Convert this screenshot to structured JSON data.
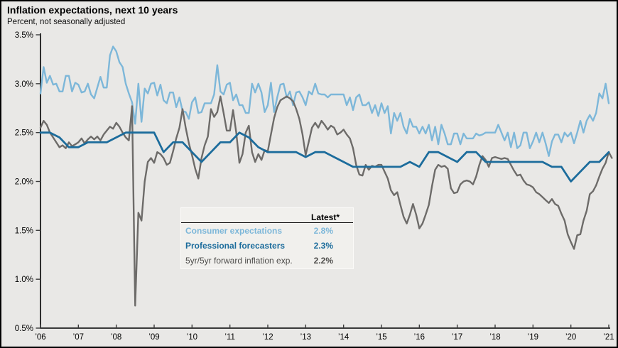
{
  "header": {
    "title": "Inflation expectations, next 10 years",
    "subtitle": "Percent, not seasonally adjusted"
  },
  "colors": {
    "background": "#e9e8e6",
    "axis": "#000000",
    "tick": "#3a3a3a",
    "consumer": "#7db7d9",
    "professional": "#1c6c9c",
    "forward": "#6d6b69",
    "legend_bg": "#f1f0ed",
    "legend_forward_text": "#4e4d4b"
  },
  "axes": {
    "y_tick_labels": [
      "3.5%",
      "3.0%",
      "2.5%",
      "2.0%",
      "1.5%",
      "1.0%",
      "0.5%"
    ],
    "y_tick_values": [
      3.5,
      3.0,
      2.5,
      2.0,
      1.5,
      1.0,
      0.5
    ],
    "x_tick_labels": [
      "’06",
      "’07",
      "’08",
      "’09",
      "’10",
      "’11",
      "’12",
      "’13",
      "’14",
      "’15",
      "’16",
      "’17",
      "’18",
      "’19",
      "’20",
      "’21"
    ],
    "x_tick_values": [
      2006,
      2007,
      2008,
      2009,
      2010,
      2011,
      2012,
      2013,
      2014,
      2015,
      2016,
      2017,
      2018,
      2019,
      2020,
      2021
    ],
    "y_min": 0.5,
    "y_max": 3.5
  },
  "legend": {
    "header": "Latest*",
    "rows": [
      {
        "label": "Consumer expectations",
        "value": "2.8%",
        "series": "consumer"
      },
      {
        "label": "Professional forecasters",
        "value": "2.3%",
        "series": "professional"
      },
      {
        "label": "5yr/5yr forward inflation exp.",
        "value": "2.2%",
        "series": "forward"
      }
    ]
  },
  "chart_data": {
    "type": "line",
    "title": "Inflation expectations, next 10 years",
    "ylabel": "Percent, not seasonally adjusted",
    "ylim": [
      0.5,
      3.5
    ],
    "xlim": [
      2006,
      2021.1
    ],
    "grid": false,
    "legend_position": "inset-center-left",
    "series": [
      {
        "name": "Consumer expectations",
        "color_key": "consumer",
        "latest": "2.8%",
        "start_year": 2006,
        "interval_months": 1,
        "width": 2.4,
        "values": [
          2.9,
          3.17,
          3.01,
          3.08,
          2.99,
          3.0,
          2.92,
          2.92,
          3.08,
          3.08,
          2.92,
          3.01,
          2.99,
          2.91,
          2.92,
          3.0,
          2.89,
          2.85,
          2.96,
          3.07,
          2.96,
          2.96,
          3.29,
          3.38,
          3.33,
          3.22,
          3.17,
          3.0,
          2.9,
          2.81,
          2.59,
          3.0,
          2.61,
          2.95,
          2.9,
          3.0,
          3.01,
          2.88,
          2.99,
          2.83,
          2.8,
          2.91,
          2.91,
          2.76,
          2.86,
          2.72,
          2.71,
          2.64,
          2.81,
          2.86,
          2.7,
          2.71,
          2.8,
          2.8,
          2.8,
          2.89,
          3.19,
          2.92,
          2.89,
          2.99,
          3.01,
          2.83,
          2.89,
          2.78,
          2.78,
          2.7,
          2.7,
          3.0,
          2.91,
          3.0,
          2.91,
          2.71,
          2.78,
          3.01,
          2.71,
          2.86,
          2.99,
          3.0,
          2.86,
          2.92,
          2.78,
          2.91,
          2.92,
          2.86,
          2.78,
          2.92,
          2.89,
          3.0,
          2.9,
          2.89,
          2.89,
          2.86,
          2.89,
          2.89,
          2.89,
          2.89,
          2.89,
          2.78,
          2.86,
          2.73,
          2.86,
          2.89,
          2.78,
          2.78,
          2.81,
          2.7,
          2.78,
          2.67,
          2.8,
          2.7,
          2.77,
          2.49,
          2.7,
          2.62,
          2.7,
          2.56,
          2.49,
          2.64,
          2.56,
          2.56,
          2.49,
          2.56,
          2.49,
          2.58,
          2.42,
          2.56,
          2.38,
          2.58,
          2.49,
          2.38,
          2.38,
          2.49,
          2.49,
          2.38,
          2.49,
          2.44,
          2.44,
          2.44,
          2.49,
          2.47,
          2.48,
          2.5,
          2.5,
          2.5,
          2.5,
          2.58,
          2.5,
          2.42,
          2.5,
          2.35,
          2.5,
          2.34,
          2.37,
          2.5,
          2.5,
          2.34,
          2.41,
          2.5,
          2.4,
          2.5,
          2.39,
          2.26,
          2.41,
          2.48,
          2.48,
          2.4,
          2.5,
          2.46,
          2.5,
          2.39,
          2.5,
          2.62,
          2.5,
          2.62,
          2.68,
          2.62,
          2.7,
          2.9,
          2.85,
          3.0,
          2.8
        ]
      },
      {
        "name": "5yr/5yr forward inflation exp.",
        "color_key": "forward",
        "latest": "2.2%",
        "start_year": 2006,
        "interval_months": 1,
        "width": 2.4,
        "values": [
          2.55,
          2.62,
          2.58,
          2.5,
          2.45,
          2.4,
          2.35,
          2.37,
          2.34,
          2.4,
          2.36,
          2.38,
          2.4,
          2.44,
          2.39,
          2.43,
          2.46,
          2.43,
          2.46,
          2.42,
          2.48,
          2.52,
          2.56,
          2.54,
          2.6,
          2.56,
          2.5,
          2.45,
          2.42,
          2.77,
          0.73,
          1.68,
          1.6,
          2.0,
          2.2,
          2.24,
          2.19,
          2.3,
          2.28,
          2.24,
          2.17,
          2.19,
          2.31,
          2.44,
          2.55,
          2.74,
          2.55,
          2.39,
          2.27,
          2.13,
          2.03,
          2.24,
          2.37,
          2.46,
          2.74,
          2.66,
          2.71,
          2.87,
          2.7,
          2.52,
          2.52,
          2.73,
          2.5,
          2.19,
          2.28,
          2.5,
          2.57,
          2.3,
          2.2,
          2.28,
          2.22,
          2.32,
          2.31,
          2.48,
          2.65,
          2.76,
          2.83,
          2.85,
          2.87,
          2.85,
          2.82,
          2.74,
          2.64,
          2.48,
          2.27,
          2.41,
          2.55,
          2.6,
          2.55,
          2.62,
          2.58,
          2.53,
          2.57,
          2.55,
          2.48,
          2.5,
          2.53,
          2.48,
          2.44,
          2.34,
          2.17,
          2.07,
          2.06,
          2.17,
          2.12,
          2.16,
          2.15,
          2.17,
          2.17,
          2.1,
          2.03,
          1.91,
          1.86,
          1.89,
          1.76,
          1.64,
          1.57,
          1.66,
          1.77,
          1.66,
          1.52,
          1.57,
          1.66,
          1.76,
          1.95,
          2.12,
          2.17,
          2.15,
          2.16,
          2.13,
          1.93,
          1.88,
          1.89,
          1.97,
          2.0,
          2.01,
          2.0,
          1.97,
          2.05,
          2.17,
          2.26,
          2.22,
          2.15,
          2.24,
          2.25,
          2.24,
          2.23,
          2.24,
          2.23,
          2.17,
          2.11,
          2.06,
          2.07,
          2.01,
          1.97,
          1.96,
          1.94,
          1.89,
          1.87,
          1.84,
          1.81,
          1.78,
          1.82,
          1.77,
          1.75,
          1.67,
          1.6,
          1.46,
          1.38,
          1.31,
          1.45,
          1.46,
          1.6,
          1.7,
          1.87,
          1.9,
          1.96,
          2.05,
          2.13,
          2.19,
          2.3,
          2.24
        ]
      },
      {
        "name": "Professional forecasters",
        "color_key": "professional",
        "latest": "2.3%",
        "start_year": 2006,
        "interval_months": 3,
        "width": 2.8,
        "values": [
          2.5,
          2.5,
          2.45,
          2.35,
          2.35,
          2.4,
          2.4,
          2.4,
          2.45,
          2.5,
          2.5,
          2.5,
          2.5,
          2.3,
          2.4,
          2.4,
          2.3,
          2.2,
          2.3,
          2.4,
          2.4,
          2.5,
          2.45,
          2.35,
          2.3,
          2.3,
          2.3,
          2.3,
          2.25,
          2.3,
          2.3,
          2.25,
          2.2,
          2.15,
          2.15,
          2.15,
          2.15,
          2.15,
          2.15,
          2.2,
          2.15,
          2.3,
          2.3,
          2.25,
          2.2,
          2.3,
          2.3,
          2.2,
          2.2,
          2.2,
          2.2,
          2.2,
          2.2,
          2.2,
          2.15,
          2.15,
          2.0,
          2.1,
          2.2,
          2.2,
          2.3
        ]
      }
    ]
  }
}
